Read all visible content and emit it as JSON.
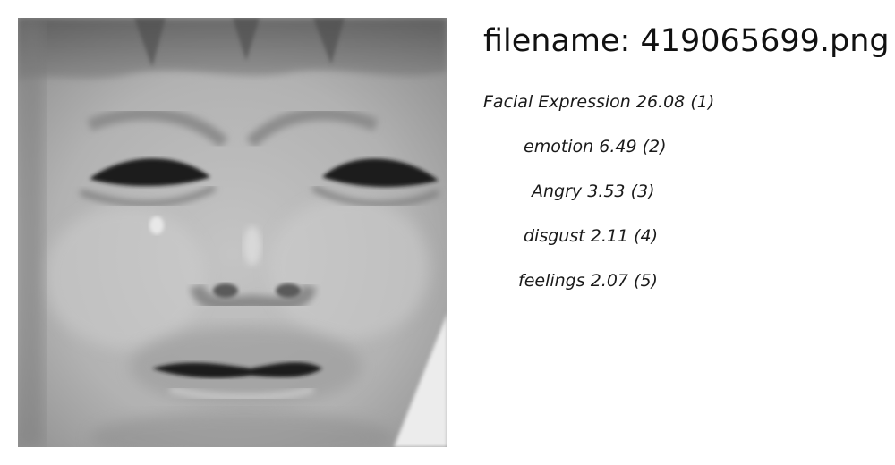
{
  "header": {
    "filename_text": "filename: 419065699.png"
  },
  "image": {
    "icon": "crying-child-face-photo",
    "palette": {
      "base": "#a8a8a8",
      "dark": "#1a1a1a",
      "light": "#e6e6e6"
    }
  },
  "labels": [
    {
      "name": "Facial Expression",
      "score": "26.08",
      "rank": "(1)"
    },
    {
      "name": "emotion",
      "score": "6.49",
      "rank": "(2)"
    },
    {
      "name": "Angry",
      "score": "3.53",
      "rank": "(3)"
    },
    {
      "name": "disgust",
      "score": "2.11",
      "rank": "(4)"
    },
    {
      "name": "feelings",
      "score": "2.07",
      "rank": "(5)"
    }
  ]
}
